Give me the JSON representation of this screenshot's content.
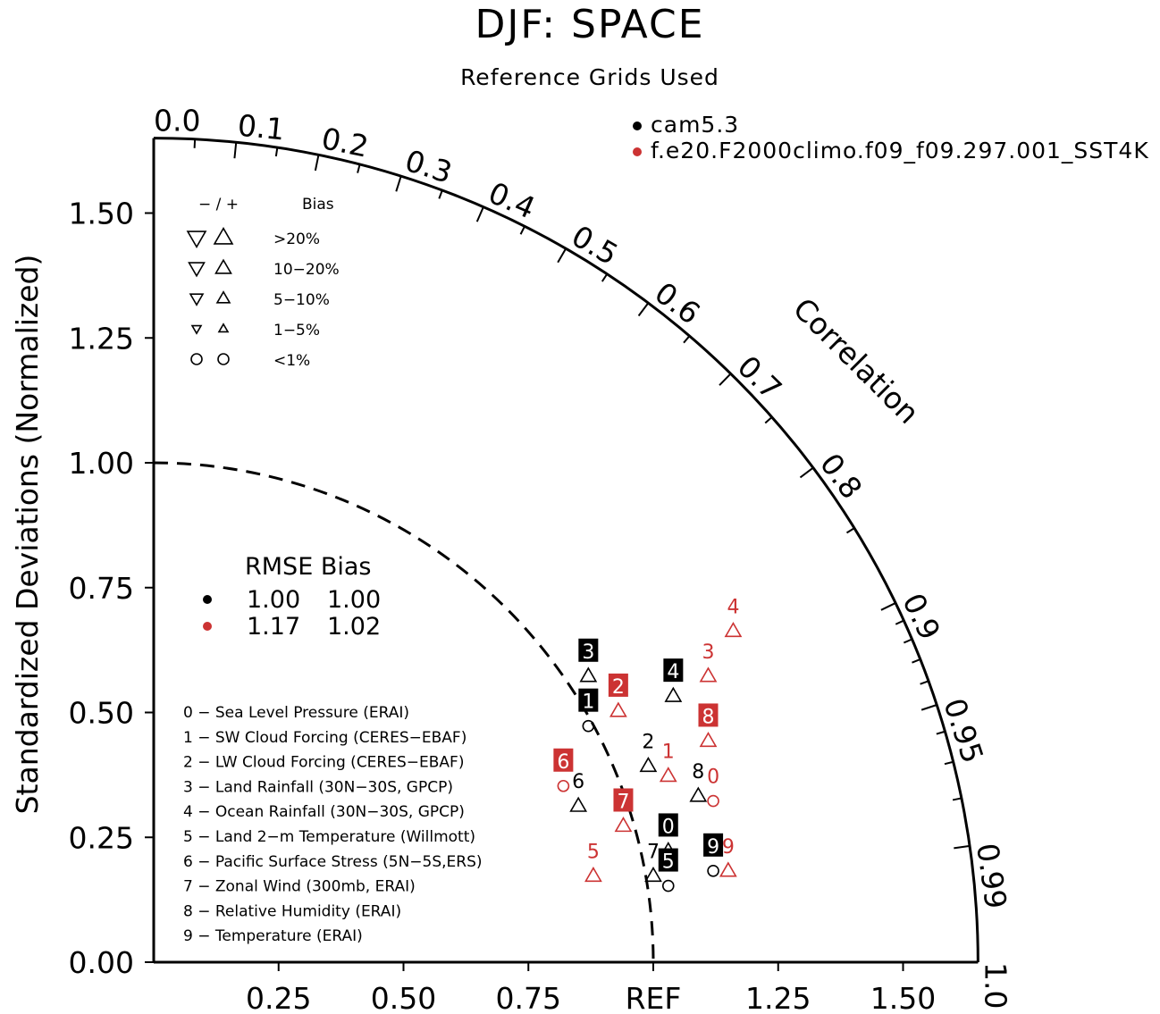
{
  "chart_data": {
    "type": "taylor",
    "title": "DJF: SPACE",
    "subtitle": "Reference Grids Used",
    "ylabel": "Standardized Deviations (Normalized)",
    "corr_label": "Correlation",
    "ref_label": "REF",
    "x_ticks": [
      "0.25",
      "0.50",
      "0.75",
      "REF",
      "1.25",
      "1.50"
    ],
    "y_ticks": [
      "0.00",
      "0.25",
      "0.50",
      "0.75",
      "1.00",
      "1.25",
      "1.50"
    ],
    "corr_ticks": [
      "0.0",
      "0.1",
      "0.2",
      "0.3",
      "0.4",
      "0.5",
      "0.6",
      "0.7",
      "0.8",
      "0.9",
      "0.95",
      "0.99",
      "1.0"
    ],
    "smax": 1.65,
    "models": [
      {
        "name": "cam5.3",
        "color": "#000000"
      },
      {
        "name": "f.e20.F2000climo.f09_f09.297.001_SST4K",
        "color": "#cc3333"
      }
    ],
    "bias_legend": {
      "header_sign": "−  /  +",
      "header_label": "Bias",
      "rows": [
        "&gt;20%",
        "10−20%",
        "5−10%",
        "1−5%",
        "&lt;1%"
      ]
    },
    "rmse_legend": {
      "header": "RMSE Bias",
      "rows": [
        {
          "rmse": "1.00",
          "bias": "1.00",
          "color": "#000000"
        },
        {
          "rmse": "1.17",
          "bias": "1.02",
          "color": "#cc3333"
        }
      ]
    },
    "variables": [
      "0 − Sea Level Pressure (ERAI)",
      "1 − SW Cloud Forcing (CERES−EBAF)",
      "2 − LW Cloud Forcing (CERES−EBAF)",
      "3 − Land Rainfall (30N−30S, GPCP)",
      "4 − Ocean Rainfall (30N−30S, GPCP)",
      "5 − Land 2−m Temperature (Willmott)",
      "6 − Pacific Surface Stress (5N−5S,ERS)",
      "7 − Zonal Wind (300mb, ERAI)",
      "8 − Relative Humidity (ERAI)",
      "9 − Temperature (ERAI)"
    ],
    "points": [
      {
        "model": 0,
        "label": "0",
        "x": 1.03,
        "y": 0.23,
        "marker": "up",
        "boxed": true
      },
      {
        "model": 0,
        "label": "1",
        "x": 0.87,
        "y": 0.48,
        "marker": "circle",
        "boxed": true
      },
      {
        "model": 0,
        "label": "2",
        "x": 0.99,
        "y": 0.4,
        "marker": "up",
        "boxed": false
      },
      {
        "model": 0,
        "label": "3",
        "x": 0.87,
        "y": 0.58,
        "marker": "up",
        "boxed": true
      },
      {
        "model": 0,
        "label": "4",
        "x": 1.04,
        "y": 0.54,
        "marker": "up",
        "boxed": true
      },
      {
        "model": 0,
        "label": "5",
        "x": 1.03,
        "y": 0.16,
        "marker": "circle",
        "boxed": true
      },
      {
        "model": 0,
        "label": "6",
        "x": 0.85,
        "y": 0.32,
        "marker": "up",
        "boxed": false
      },
      {
        "model": 0,
        "label": "7",
        "x": 1.0,
        "y": 0.18,
        "marker": "up",
        "boxed": false
      },
      {
        "model": 0,
        "label": "8",
        "x": 1.09,
        "y": 0.34,
        "marker": "up",
        "boxed": false
      },
      {
        "model": 0,
        "label": "9",
        "x": 1.12,
        "y": 0.19,
        "marker": "circle",
        "boxed": true
      },
      {
        "model": 1,
        "label": "0",
        "x": 1.12,
        "y": 0.33,
        "marker": "circle",
        "boxed": false
      },
      {
        "model": 1,
        "label": "1",
        "x": 1.03,
        "y": 0.38,
        "marker": "up",
        "boxed": false
      },
      {
        "model": 1,
        "label": "2",
        "x": 0.93,
        "y": 0.51,
        "marker": "up",
        "boxed": true
      },
      {
        "model": 1,
        "label": "3",
        "x": 1.11,
        "y": 0.58,
        "marker": "up",
        "boxed": false
      },
      {
        "model": 1,
        "label": "4",
        "x": 1.16,
        "y": 0.67,
        "marker": "up",
        "boxed": false
      },
      {
        "model": 1,
        "label": "5",
        "x": 0.88,
        "y": 0.18,
        "marker": "up",
        "boxed": false
      },
      {
        "model": 1,
        "label": "6",
        "x": 0.82,
        "y": 0.36,
        "marker": "circle",
        "boxed": true
      },
      {
        "model": 1,
        "label": "7",
        "x": 0.94,
        "y": 0.28,
        "marker": "up",
        "boxed": true
      },
      {
        "model": 1,
        "label": "8",
        "x": 1.11,
        "y": 0.45,
        "marker": "up",
        "boxed": true
      },
      {
        "model": 1,
        "label": "9",
        "x": 1.15,
        "y": 0.19,
        "marker": "up",
        "boxed": false
      }
    ]
  }
}
